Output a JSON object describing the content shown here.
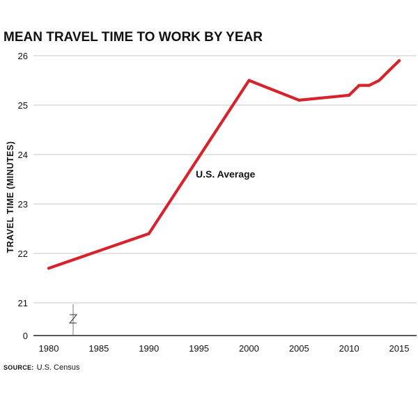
{
  "chart_data": {
    "type": "line",
    "title": "MEAN TRAVEL TIME TO WORK BY YEAR",
    "xlabel": "",
    "ylabel": "TRAVEL TIME (MINUTES)",
    "x_ticks": [
      1980,
      1985,
      1990,
      1995,
      2000,
      2005,
      2010,
      2015
    ],
    "y_ticks": [
      0,
      21,
      22,
      23,
      24,
      25,
      26
    ],
    "axis_break": "between 0 and 21",
    "grid": true,
    "series": [
      {
        "name": "U.S. Average",
        "color": "#d7232b",
        "x": [
          1980,
          1990,
          2000,
          2005,
          2010,
          2011,
          2012,
          2013,
          2014,
          2015
        ],
        "y": [
          21.7,
          22.4,
          25.5,
          25.1,
          25.2,
          25.4,
          25.4,
          25.5,
          25.7,
          25.9
        ]
      }
    ],
    "annotation": "U.S. Average",
    "source_label": "SOURCE:",
    "source_text": "U.S. Census"
  }
}
